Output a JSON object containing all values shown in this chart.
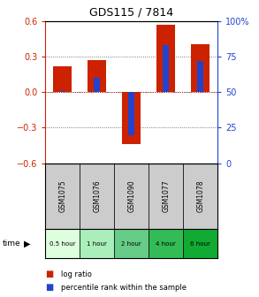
{
  "title": "GDS115 / 7814",
  "samples": [
    "GSM1075",
    "GSM1076",
    "GSM1090",
    "GSM1077",
    "GSM1078"
  ],
  "log_ratio": [
    0.22,
    0.27,
    -0.44,
    0.57,
    0.4
  ],
  "percentile": [
    0.51,
    0.6,
    0.2,
    0.83,
    0.72
  ],
  "time_labels": [
    "0.5 hour",
    "1 hour",
    "2 hour",
    "4 hour",
    "6 hour"
  ],
  "time_colors": [
    "#ddffdd",
    "#aaeebb",
    "#66cc88",
    "#33bb55",
    "#11aa33"
  ],
  "ylim": [
    -0.6,
    0.6
  ],
  "yticks_left": [
    -0.6,
    -0.3,
    0.0,
    0.3,
    0.6
  ],
  "bar_color_red": "#cc2200",
  "bar_color_blue": "#2244cc",
  "sample_bg": "#cccccc",
  "left_axis_color": "#cc2200",
  "right_axis_color": "#2244cc",
  "grid_color": "#555555",
  "zero_line_color": "#cc0000",
  "bar_width": 0.55,
  "blue_bar_width": 0.18
}
